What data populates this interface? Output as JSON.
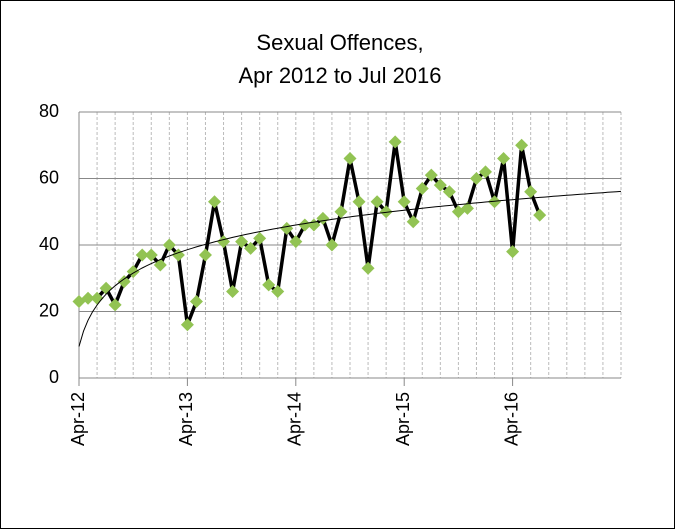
{
  "chart_data": {
    "type": "line",
    "title": [
      "Sexual Offences,",
      "Apr 2012 to Jul 2016"
    ],
    "categories": [
      "Apr-12",
      null,
      null,
      null,
      null,
      null,
      null,
      null,
      null,
      null,
      null,
      null,
      "Apr-13",
      null,
      null,
      null,
      null,
      null,
      null,
      null,
      null,
      null,
      null,
      null,
      "Apr-14",
      null,
      null,
      null,
      null,
      null,
      null,
      null,
      null,
      null,
      null,
      null,
      "Apr-15",
      null,
      null,
      null,
      null,
      null,
      null,
      null,
      null,
      null,
      null,
      null,
      "Apr-16",
      null,
      null,
      null,
      null,
      null,
      null,
      null,
      null,
      null,
      null,
      null
    ],
    "series": [
      {
        "color": "#000000",
        "marker_color": "#92c353",
        "values": [
          23,
          24,
          24,
          27,
          22,
          29,
          32,
          37,
          37,
          34,
          40,
          37,
          16,
          23,
          37,
          53,
          41,
          26,
          41,
          39,
          42,
          28,
          26,
          45,
          41,
          46,
          46,
          48,
          40,
          50,
          66,
          53,
          33,
          53,
          50,
          71,
          53,
          47,
          57,
          61,
          58,
          56,
          50,
          51,
          60,
          62,
          53,
          66,
          38,
          70,
          56,
          49,
          null,
          null,
          null,
          null,
          null,
          null,
          null,
          null
        ]
      }
    ],
    "trendline": "logarithmic",
    "ylim": [
      0,
      80
    ],
    "yticks": [
      0,
      20,
      40,
      60,
      80
    ],
    "grid": true
  }
}
